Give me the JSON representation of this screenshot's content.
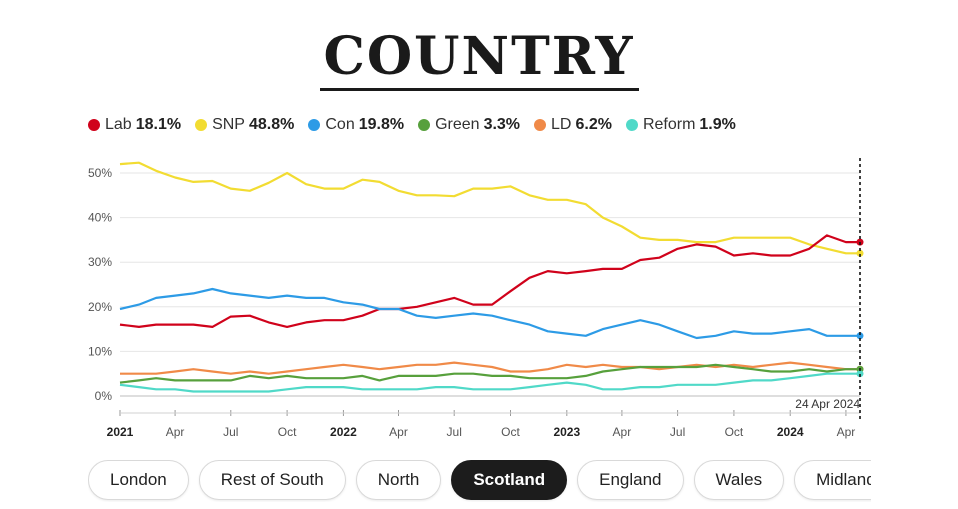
{
  "title": "COUNTRY",
  "legend": [
    {
      "name": "Lab",
      "value": "18.1%",
      "color": "#d0021b"
    },
    {
      "name": "SNP",
      "value": "48.8%",
      "color": "#f2dc32"
    },
    {
      "name": "Con",
      "value": "19.8%",
      "color": "#2d9be6"
    },
    {
      "name": "Green",
      "value": "3.3%",
      "color": "#57a03c"
    },
    {
      "name": "LD",
      "value": "6.2%",
      "color": "#f08a48"
    },
    {
      "name": "Reform",
      "value": "1.9%",
      "color": "#50d9c8"
    }
  ],
  "chips": [
    {
      "label": "London",
      "active": false
    },
    {
      "label": "Rest of South",
      "active": false
    },
    {
      "label": "North",
      "active": false
    },
    {
      "label": "Scotland",
      "active": true
    },
    {
      "label": "England",
      "active": false
    },
    {
      "label": "Wales",
      "active": false
    },
    {
      "label": "Midlands",
      "active": false
    }
  ],
  "chart_data": {
    "type": "line",
    "ylim": [
      0,
      52
    ],
    "yticks": [
      "0%",
      "10%",
      "20%",
      "30%",
      "40%",
      "50%"
    ],
    "xticks": [
      {
        "date": "2021-01-01",
        "label": "2021",
        "bold": true
      },
      {
        "date": "2021-04-01",
        "label": "Apr",
        "bold": false
      },
      {
        "date": "2021-07-01",
        "label": "Jul",
        "bold": false
      },
      {
        "date": "2021-10-01",
        "label": "Oct",
        "bold": false
      },
      {
        "date": "2022-01-01",
        "label": "2022",
        "bold": true
      },
      {
        "date": "2022-04-01",
        "label": "Apr",
        "bold": false
      },
      {
        "date": "2022-07-01",
        "label": "Jul",
        "bold": false
      },
      {
        "date": "2022-10-01",
        "label": "Oct",
        "bold": false
      },
      {
        "date": "2023-01-01",
        "label": "2023",
        "bold": true
      },
      {
        "date": "2023-04-01",
        "label": "Apr",
        "bold": false
      },
      {
        "date": "2023-07-01",
        "label": "Jul",
        "bold": false
      },
      {
        "date": "2023-10-01",
        "label": "Oct",
        "bold": false
      },
      {
        "date": "2024-01-01",
        "label": "2024",
        "bold": true
      },
      {
        "date": "2024-04-01",
        "label": "Apr",
        "bold": false
      }
    ],
    "x_range": [
      "2021-01-01",
      "2024-04-24"
    ],
    "marker": {
      "date": "2024-04-24",
      "label": "24 Apr 2024"
    },
    "grid": true,
    "series": [
      {
        "name": "SNP",
        "color": "#f2dc32",
        "points": [
          [
            "2021-01-01",
            52.0
          ],
          [
            "2021-02-01",
            52.3
          ],
          [
            "2021-03-01",
            50.5
          ],
          [
            "2021-04-01",
            49.0
          ],
          [
            "2021-05-01",
            48.0
          ],
          [
            "2021-06-01",
            48.2
          ],
          [
            "2021-07-01",
            46.5
          ],
          [
            "2021-08-01",
            46.0
          ],
          [
            "2021-09-01",
            47.8
          ],
          [
            "2021-10-01",
            50.0
          ],
          [
            "2021-11-01",
            47.5
          ],
          [
            "2021-12-01",
            46.5
          ],
          [
            "2022-01-01",
            46.5
          ],
          [
            "2022-02-01",
            48.5
          ],
          [
            "2022-03-01",
            48.0
          ],
          [
            "2022-04-01",
            46.0
          ],
          [
            "2022-05-01",
            45.0
          ],
          [
            "2022-06-01",
            45.0
          ],
          [
            "2022-07-01",
            44.8
          ],
          [
            "2022-08-01",
            46.5
          ],
          [
            "2022-09-01",
            46.5
          ],
          [
            "2022-10-01",
            47.0
          ],
          [
            "2022-11-01",
            45.0
          ],
          [
            "2022-12-01",
            44.0
          ],
          [
            "2023-01-01",
            44.0
          ],
          [
            "2023-02-01",
            43.0
          ],
          [
            "2023-03-01",
            40.0
          ],
          [
            "2023-04-01",
            38.0
          ],
          [
            "2023-05-01",
            35.5
          ],
          [
            "2023-06-01",
            35.0
          ],
          [
            "2023-07-01",
            35.0
          ],
          [
            "2023-08-01",
            34.5
          ],
          [
            "2023-09-01",
            34.5
          ],
          [
            "2023-10-01",
            35.5
          ],
          [
            "2023-11-01",
            35.5
          ],
          [
            "2023-12-01",
            35.5
          ],
          [
            "2024-01-01",
            35.5
          ],
          [
            "2024-02-01",
            34.0
          ],
          [
            "2024-03-01",
            33.0
          ],
          [
            "2024-04-01",
            32.0
          ],
          [
            "2024-04-24",
            32.0
          ]
        ]
      },
      {
        "name": "Lab",
        "color": "#d0021b",
        "points": [
          [
            "2021-01-01",
            16.0
          ],
          [
            "2021-02-01",
            15.5
          ],
          [
            "2021-03-01",
            16.0
          ],
          [
            "2021-04-01",
            16.0
          ],
          [
            "2021-05-01",
            16.0
          ],
          [
            "2021-06-01",
            15.5
          ],
          [
            "2021-07-01",
            17.8
          ],
          [
            "2021-08-01",
            18.0
          ],
          [
            "2021-09-01",
            16.5
          ],
          [
            "2021-10-01",
            15.5
          ],
          [
            "2021-11-01",
            16.5
          ],
          [
            "2021-12-01",
            17.0
          ],
          [
            "2022-01-01",
            17.0
          ],
          [
            "2022-02-01",
            18.0
          ],
          [
            "2022-03-01",
            19.5
          ],
          [
            "2022-04-01",
            19.5
          ],
          [
            "2022-05-01",
            20.0
          ],
          [
            "2022-06-01",
            21.0
          ],
          [
            "2022-07-01",
            22.0
          ],
          [
            "2022-08-01",
            20.5
          ],
          [
            "2022-09-01",
            20.5
          ],
          [
            "2022-10-01",
            23.5
          ],
          [
            "2022-11-01",
            26.5
          ],
          [
            "2022-12-01",
            28.0
          ],
          [
            "2023-01-01",
            27.5
          ],
          [
            "2023-02-01",
            28.0
          ],
          [
            "2023-03-01",
            28.5
          ],
          [
            "2023-04-01",
            28.5
          ],
          [
            "2023-05-01",
            30.5
          ],
          [
            "2023-06-01",
            31.0
          ],
          [
            "2023-07-01",
            33.0
          ],
          [
            "2023-08-01",
            34.0
          ],
          [
            "2023-09-01",
            33.5
          ],
          [
            "2023-10-01",
            31.5
          ],
          [
            "2023-11-01",
            32.0
          ],
          [
            "2023-12-01",
            31.5
          ],
          [
            "2024-01-01",
            31.5
          ],
          [
            "2024-02-01",
            33.0
          ],
          [
            "2024-03-01",
            36.0
          ],
          [
            "2024-04-01",
            34.5
          ],
          [
            "2024-04-24",
            34.5
          ]
        ]
      },
      {
        "name": "Con",
        "color": "#2d9be6",
        "points": [
          [
            "2021-01-01",
            19.5
          ],
          [
            "2021-02-01",
            20.5
          ],
          [
            "2021-03-01",
            22.0
          ],
          [
            "2021-04-01",
            22.5
          ],
          [
            "2021-05-01",
            23.0
          ],
          [
            "2021-06-01",
            24.0
          ],
          [
            "2021-07-01",
            23.0
          ],
          [
            "2021-08-01",
            22.5
          ],
          [
            "2021-09-01",
            22.0
          ],
          [
            "2021-10-01",
            22.5
          ],
          [
            "2021-11-01",
            22.0
          ],
          [
            "2021-12-01",
            22.0
          ],
          [
            "2022-01-01",
            21.0
          ],
          [
            "2022-02-01",
            20.5
          ],
          [
            "2022-03-01",
            19.5
          ],
          [
            "2022-04-01",
            19.5
          ],
          [
            "2022-05-01",
            18.0
          ],
          [
            "2022-06-01",
            17.5
          ],
          [
            "2022-07-01",
            18.0
          ],
          [
            "2022-08-01",
            18.5
          ],
          [
            "2022-09-01",
            18.0
          ],
          [
            "2022-10-01",
            17.0
          ],
          [
            "2022-11-01",
            16.0
          ],
          [
            "2022-12-01",
            14.5
          ],
          [
            "2023-01-01",
            14.0
          ],
          [
            "2023-02-01",
            13.5
          ],
          [
            "2023-03-01",
            15.0
          ],
          [
            "2023-04-01",
            16.0
          ],
          [
            "2023-05-01",
            17.0
          ],
          [
            "2023-06-01",
            16.0
          ],
          [
            "2023-07-01",
            14.5
          ],
          [
            "2023-08-01",
            13.0
          ],
          [
            "2023-09-01",
            13.5
          ],
          [
            "2023-10-01",
            14.5
          ],
          [
            "2023-11-01",
            14.0
          ],
          [
            "2023-12-01",
            14.0
          ],
          [
            "2024-01-01",
            14.5
          ],
          [
            "2024-02-01",
            15.0
          ],
          [
            "2024-03-01",
            13.5
          ],
          [
            "2024-04-01",
            13.5
          ],
          [
            "2024-04-24",
            13.5
          ]
        ]
      },
      {
        "name": "LD",
        "color": "#f08a48",
        "points": [
          [
            "2021-01-01",
            5.0
          ],
          [
            "2021-02-01",
            5.0
          ],
          [
            "2021-03-01",
            5.0
          ],
          [
            "2021-04-01",
            5.5
          ],
          [
            "2021-05-01",
            6.0
          ],
          [
            "2021-06-01",
            5.5
          ],
          [
            "2021-07-01",
            5.0
          ],
          [
            "2021-08-01",
            5.5
          ],
          [
            "2021-09-01",
            5.0
          ],
          [
            "2021-10-01",
            5.5
          ],
          [
            "2021-11-01",
            6.0
          ],
          [
            "2021-12-01",
            6.5
          ],
          [
            "2022-01-01",
            7.0
          ],
          [
            "2022-02-01",
            6.5
          ],
          [
            "2022-03-01",
            6.0
          ],
          [
            "2022-04-01",
            6.5
          ],
          [
            "2022-05-01",
            7.0
          ],
          [
            "2022-06-01",
            7.0
          ],
          [
            "2022-07-01",
            7.5
          ],
          [
            "2022-08-01",
            7.0
          ],
          [
            "2022-09-01",
            6.5
          ],
          [
            "2022-10-01",
            5.5
          ],
          [
            "2022-11-01",
            5.5
          ],
          [
            "2022-12-01",
            6.0
          ],
          [
            "2023-01-01",
            7.0
          ],
          [
            "2023-02-01",
            6.5
          ],
          [
            "2023-03-01",
            7.0
          ],
          [
            "2023-04-01",
            6.5
          ],
          [
            "2023-05-01",
            6.5
          ],
          [
            "2023-06-01",
            6.0
          ],
          [
            "2023-07-01",
            6.5
          ],
          [
            "2023-08-01",
            7.0
          ],
          [
            "2023-09-01",
            6.5
          ],
          [
            "2023-10-01",
            7.0
          ],
          [
            "2023-11-01",
            6.5
          ],
          [
            "2023-12-01",
            7.0
          ],
          [
            "2024-01-01",
            7.5
          ],
          [
            "2024-02-01",
            7.0
          ],
          [
            "2024-03-01",
            6.5
          ],
          [
            "2024-04-01",
            6.0
          ],
          [
            "2024-04-24",
            6.0
          ]
        ]
      },
      {
        "name": "Green",
        "color": "#57a03c",
        "points": [
          [
            "2021-01-01",
            3.0
          ],
          [
            "2021-02-01",
            3.5
          ],
          [
            "2021-03-01",
            4.0
          ],
          [
            "2021-04-01",
            3.5
          ],
          [
            "2021-05-01",
            3.5
          ],
          [
            "2021-06-01",
            3.5
          ],
          [
            "2021-07-01",
            3.5
          ],
          [
            "2021-08-01",
            4.5
          ],
          [
            "2021-09-01",
            4.0
          ],
          [
            "2021-10-01",
            4.5
          ],
          [
            "2021-11-01",
            4.0
          ],
          [
            "2021-12-01",
            4.0
          ],
          [
            "2022-01-01",
            4.0
          ],
          [
            "2022-02-01",
            4.5
          ],
          [
            "2022-03-01",
            3.5
          ],
          [
            "2022-04-01",
            4.5
          ],
          [
            "2022-05-01",
            4.5
          ],
          [
            "2022-06-01",
            4.5
          ],
          [
            "2022-07-01",
            5.0
          ],
          [
            "2022-08-01",
            5.0
          ],
          [
            "2022-09-01",
            4.5
          ],
          [
            "2022-10-01",
            4.5
          ],
          [
            "2022-11-01",
            4.0
          ],
          [
            "2022-12-01",
            4.0
          ],
          [
            "2023-01-01",
            4.0
          ],
          [
            "2023-02-01",
            4.5
          ],
          [
            "2023-03-01",
            5.5
          ],
          [
            "2023-04-01",
            6.0
          ],
          [
            "2023-05-01",
            6.5
          ],
          [
            "2023-06-01",
            6.5
          ],
          [
            "2023-07-01",
            6.5
          ],
          [
            "2023-08-01",
            6.5
          ],
          [
            "2023-09-01",
            7.0
          ],
          [
            "2023-10-01",
            6.5
          ],
          [
            "2023-11-01",
            6.0
          ],
          [
            "2023-12-01",
            5.5
          ],
          [
            "2024-01-01",
            5.5
          ],
          [
            "2024-02-01",
            6.0
          ],
          [
            "2024-03-01",
            5.5
          ],
          [
            "2024-04-01",
            6.0
          ],
          [
            "2024-04-24",
            6.0
          ]
        ]
      },
      {
        "name": "Reform",
        "color": "#50d9c8",
        "points": [
          [
            "2021-01-01",
            2.5
          ],
          [
            "2021-02-01",
            2.0
          ],
          [
            "2021-03-01",
            1.5
          ],
          [
            "2021-04-01",
            1.5
          ],
          [
            "2021-05-01",
            1.0
          ],
          [
            "2021-06-01",
            1.0
          ],
          [
            "2021-07-01",
            1.0
          ],
          [
            "2021-08-01",
            1.0
          ],
          [
            "2021-09-01",
            1.0
          ],
          [
            "2021-10-01",
            1.5
          ],
          [
            "2021-11-01",
            2.0
          ],
          [
            "2021-12-01",
            2.0
          ],
          [
            "2022-01-01",
            2.0
          ],
          [
            "2022-02-01",
            1.5
          ],
          [
            "2022-03-01",
            1.5
          ],
          [
            "2022-04-01",
            1.5
          ],
          [
            "2022-05-01",
            1.5
          ],
          [
            "2022-06-01",
            2.0
          ],
          [
            "2022-07-01",
            2.0
          ],
          [
            "2022-08-01",
            1.5
          ],
          [
            "2022-09-01",
            1.5
          ],
          [
            "2022-10-01",
            1.5
          ],
          [
            "2022-11-01",
            2.0
          ],
          [
            "2022-12-01",
            2.5
          ],
          [
            "2023-01-01",
            3.0
          ],
          [
            "2023-02-01",
            2.5
          ],
          [
            "2023-03-01",
            1.5
          ],
          [
            "2023-04-01",
            1.5
          ],
          [
            "2023-05-01",
            2.0
          ],
          [
            "2023-06-01",
            2.0
          ],
          [
            "2023-07-01",
            2.5
          ],
          [
            "2023-08-01",
            2.5
          ],
          [
            "2023-09-01",
            2.5
          ],
          [
            "2023-10-01",
            3.0
          ],
          [
            "2023-11-01",
            3.5
          ],
          [
            "2023-12-01",
            3.5
          ],
          [
            "2024-01-01",
            4.0
          ],
          [
            "2024-02-01",
            4.5
          ],
          [
            "2024-03-01",
            5.0
          ],
          [
            "2024-04-01",
            5.0
          ],
          [
            "2024-04-24",
            5.0
          ]
        ]
      }
    ]
  }
}
